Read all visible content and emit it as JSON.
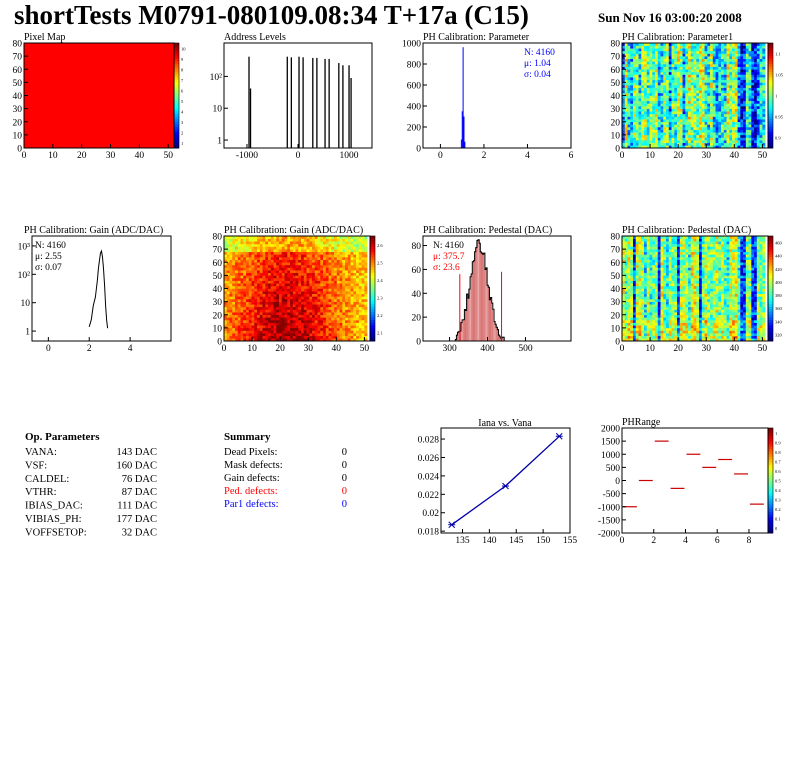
{
  "header": {
    "title": "shortTests M0791-080109.08:34 T+17a (C15)",
    "date": "Sun Nov 16 03:00:20 2008"
  },
  "colors": {
    "red": "#ff0000",
    "blue": "#0000ff",
    "frame": "#000000"
  },
  "chart_data": [
    {
      "id": "pixel-map",
      "type": "heatmap",
      "title": "Pixel Map",
      "x_ticks": [
        "0",
        "10",
        "20",
        "30",
        "40",
        "50"
      ],
      "y_ticks": [
        "0",
        "10",
        "20",
        "30",
        "40",
        "50",
        "60",
        "70",
        "80"
      ],
      "xlim": [
        0,
        52
      ],
      "ylim": [
        0,
        80
      ],
      "fill_color": "#ff0000",
      "zaxis_ticks": [
        "10",
        "9",
        "8",
        "7",
        "6",
        "5",
        "4",
        "3",
        "2",
        "1"
      ]
    },
    {
      "id": "address-levels",
      "type": "bar",
      "title": "Address Levels",
      "x_ticks": [
        "-1000",
        "0",
        "1000"
      ],
      "xlim": [
        -1450,
        1450
      ],
      "log_y": true,
      "y_ticks": [
        "10²",
        "10",
        "1"
      ],
      "peaks_x": [
        -960,
        -930,
        -210,
        -130,
        20,
        100,
        290,
        370,
        530,
        610,
        800,
        880,
        1000,
        1040
      ],
      "peaks_logy": [
        2.62,
        1.62,
        2.62,
        2.6,
        2.62,
        2.6,
        2.58,
        2.58,
        2.55,
        2.55,
        2.42,
        2.35,
        2.35,
        1.95
      ]
    },
    {
      "id": "ph-parameter",
      "type": "bar",
      "title": "PH Calibration: Parameter",
      "x_ticks": [
        "0",
        "2",
        "4",
        "6"
      ],
      "xlim": [
        -0.8,
        6
      ],
      "y_ticks": [
        "0",
        "200",
        "400",
        "600",
        "800",
        "1000"
      ],
      "ylim": [
        0,
        1000
      ],
      "stats": {
        "n": "N: 4160",
        "mean": "μ: 1.04",
        "sigma": "σ: 0.04"
      },
      "bins_x": [
        0.96,
        1.0,
        1.04,
        1.08,
        1.12
      ],
      "bins_y": [
        80,
        350,
        960,
        300,
        60
      ]
    },
    {
      "id": "ph-parameter1",
      "type": "heatmap",
      "title": "PH Calibration: Parameter1",
      "x_ticks": [
        "0",
        "10",
        "20",
        "30",
        "40",
        "50"
      ],
      "y_ticks": [
        "0",
        "10",
        "20",
        "30",
        "40",
        "50",
        "60",
        "70",
        "80"
      ],
      "xlim": [
        0,
        52
      ],
      "ylim": [
        0,
        80
      ],
      "zaxis_ticks": [
        "1.1",
        "1.05",
        "1",
        "0.95",
        "0.9"
      ]
    },
    {
      "id": "gain-hist",
      "type": "line",
      "title": "PH Calibration: Gain (ADC/DAC)",
      "x_ticks": [
        "0",
        "2",
        "4"
      ],
      "xlim": [
        -0.8,
        6
      ],
      "log_y": true,
      "y_ticks": [
        "10³",
        "10²",
        "10",
        "1"
      ],
      "stats": {
        "n": "N: 4160",
        "mean": "μ: 2.55",
        "sigma": "σ: 0.07"
      },
      "x": [
        2.0,
        2.1,
        2.2,
        2.3,
        2.35,
        2.4,
        2.45,
        2.5,
        2.55,
        2.6,
        2.65,
        2.7,
        2.75,
        2.8,
        2.85,
        2.9
      ],
      "logy": [
        0.15,
        0.4,
        0.9,
        1.2,
        1.5,
        1.8,
        2.2,
        2.5,
        2.75,
        2.82,
        2.6,
        2.2,
        1.6,
        0.9,
        0.4,
        0.1
      ]
    },
    {
      "id": "gain-map",
      "type": "heatmap",
      "title": "PH Calibration: Gain (ADC/DAC)",
      "x_ticks": [
        "0",
        "10",
        "20",
        "30",
        "40",
        "50"
      ],
      "y_ticks": [
        "0",
        "10",
        "20",
        "30",
        "40",
        "50",
        "60",
        "70",
        "80"
      ],
      "xlim": [
        0,
        52
      ],
      "ylim": [
        0,
        80
      ],
      "zaxis_ticks": [
        "2.6",
        "2.5",
        "2.4",
        "2.3",
        "2.2",
        "2.1"
      ]
    },
    {
      "id": "pedestal-hist",
      "type": "bar",
      "title": "PH Calibration: Pedestal (DAC)",
      "x_ticks": [
        "300",
        "400",
        "500"
      ],
      "xlim": [
        230,
        620
      ],
      "y_ticks": [
        "0",
        "20",
        "40",
        "60",
        "80"
      ],
      "ylim": [
        0,
        88
      ],
      "stats": {
        "n": "N: 4160",
        "mean": "μ: 375.7",
        "sigma": "σ: 23.6"
      },
      "cut_lines_x": [
        327,
        437
      ],
      "cut_lines_y": [
        56,
        58
      ]
    },
    {
      "id": "pedestal-map",
      "type": "heatmap",
      "title": "PH Calibration: Pedestal (DAC)",
      "x_ticks": [
        "0",
        "10",
        "20",
        "30",
        "40",
        "50"
      ],
      "y_ticks": [
        "0",
        "10",
        "20",
        "30",
        "40",
        "50",
        "60",
        "70",
        "80"
      ],
      "xlim": [
        0,
        52
      ],
      "ylim": [
        0,
        80
      ],
      "zaxis_ticks": [
        "460",
        "440",
        "420",
        "400",
        "380",
        "360",
        "340",
        "320"
      ]
    },
    {
      "id": "iana-vana",
      "type": "line",
      "title": "Iana vs. Vana",
      "x_ticks": [
        "135",
        "140",
        "145",
        "150",
        "155"
      ],
      "xlim": [
        131,
        155
      ],
      "y_ticks": [
        "0.018",
        "0.02",
        "0.022",
        "0.024",
        "0.026",
        "0.028"
      ],
      "ylim": [
        0.0178,
        0.0292
      ],
      "x": [
        133,
        143,
        153
      ],
      "y": [
        0.0187,
        0.0229,
        0.0283
      ]
    },
    {
      "id": "ph-range",
      "type": "scatter",
      "title": "PHRange",
      "x_ticks": [
        "0",
        "2",
        "4",
        "6",
        "8"
      ],
      "xlim": [
        0,
        9.2
      ],
      "y_ticks": [
        "2000",
        "1500",
        "1000",
        "500",
        "0",
        "-500",
        "-1000",
        "-1500",
        "-2000"
      ],
      "ylim": [
        -2000,
        2000
      ],
      "x": [
        0.5,
        1.5,
        2.5,
        3.5,
        4.5,
        5.5,
        6.5,
        7.5,
        8.5
      ],
      "y": [
        -1000,
        0,
        1500,
        -300,
        1000,
        500,
        800,
        250,
        -900
      ],
      "zaxis_ticks": [
        "1",
        "0.9",
        "0.8",
        "0.7",
        "0.6",
        "0.5",
        "0.4",
        "0.3",
        "0.2",
        "0.1",
        "0"
      ]
    }
  ],
  "op_params": {
    "heading": "Op. Parameters",
    "rows": [
      {
        "name": "VANA:",
        "value": "143 DAC"
      },
      {
        "name": "VSF:",
        "value": "160 DAC"
      },
      {
        "name": "CALDEL:",
        "value": "76 DAC"
      },
      {
        "name": "VTHR:",
        "value": "87 DAC"
      },
      {
        "name": "IBIAS_DAC:",
        "value": "111 DAC"
      },
      {
        "name": "VIBIAS_PH:",
        "value": "177 DAC"
      },
      {
        "name": "VOFFSETOP:",
        "value": "32 DAC"
      }
    ]
  },
  "summary": {
    "heading": "Summary",
    "rows": [
      {
        "name": "Dead Pixels:",
        "value": "0",
        "color": "#000000"
      },
      {
        "name": "Mask defects:",
        "value": "0",
        "color": "#000000"
      },
      {
        "name": "Gain defects:",
        "value": "0",
        "color": "#000000"
      },
      {
        "name": "Ped. defects:",
        "value": "0",
        "color": "#ff0000"
      },
      {
        "name": "Par1 defects:",
        "value": "0",
        "color": "#0000ff"
      }
    ]
  }
}
